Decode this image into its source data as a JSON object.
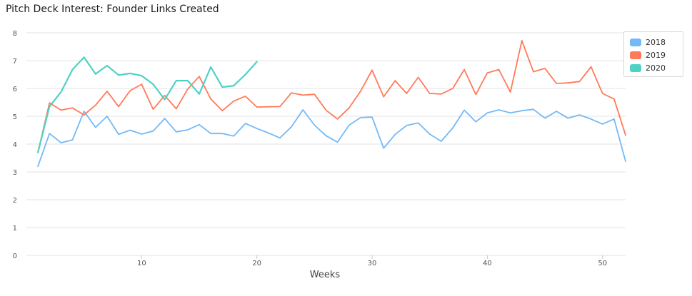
{
  "chart_data": {
    "type": "line",
    "title": "Pitch Deck Interest: Founder Links Created",
    "xlabel": "Weeks",
    "ylabel": "",
    "xlim": [
      0,
      52
    ],
    "ylim": [
      0,
      8
    ],
    "xticks": [
      10,
      20,
      30,
      40,
      50
    ],
    "yticks": [
      0,
      1,
      2,
      3,
      4,
      5,
      6,
      7,
      8
    ],
    "grid": true,
    "legend_position": "top-right",
    "series": [
      {
        "name": "2018",
        "color": "#74b9f7",
        "x": [
          1,
          2,
          3,
          4,
          5,
          6,
          7,
          8,
          9,
          10,
          11,
          12,
          13,
          14,
          15,
          16,
          17,
          18,
          19,
          20,
          21,
          22,
          23,
          24,
          25,
          26,
          27,
          28,
          29,
          30,
          31,
          32,
          33,
          34,
          35,
          36,
          37,
          38,
          39,
          40,
          41,
          42,
          43,
          44,
          45,
          46,
          47,
          48,
          49,
          50,
          51,
          52
        ],
        "values": [
          3.2,
          4.38,
          4.05,
          4.15,
          5.18,
          4.6,
          5.0,
          4.35,
          4.5,
          4.36,
          4.47,
          4.92,
          4.44,
          4.51,
          4.7,
          4.38,
          4.38,
          4.29,
          4.74,
          4.56,
          4.4,
          4.22,
          4.62,
          5.23,
          4.68,
          4.3,
          4.07,
          4.68,
          4.95,
          4.97,
          3.85,
          4.35,
          4.67,
          4.76,
          4.36,
          4.1,
          4.58,
          5.22,
          4.8,
          5.12,
          5.23,
          5.12,
          5.2,
          5.25,
          4.93,
          5.18,
          4.93,
          5.05,
          4.9,
          4.72,
          4.9,
          3.38
        ]
      },
      {
        "name": "2019",
        "color": "#ff7a59",
        "x": [
          1,
          2,
          3,
          4,
          5,
          6,
          7,
          8,
          9,
          10,
          11,
          12,
          13,
          14,
          15,
          16,
          17,
          18,
          19,
          20,
          21,
          22,
          23,
          24,
          25,
          26,
          27,
          28,
          29,
          30,
          31,
          32,
          33,
          34,
          35,
          36,
          37,
          38,
          39,
          40,
          41,
          42,
          43,
          44,
          45,
          46,
          47,
          48,
          49,
          50,
          51,
          52
        ],
        "values": [
          3.7,
          5.48,
          5.22,
          5.3,
          5.05,
          5.4,
          5.9,
          5.35,
          5.92,
          6.15,
          5.25,
          5.75,
          5.27,
          5.98,
          6.43,
          5.62,
          5.2,
          5.55,
          5.72,
          5.33,
          5.34,
          5.35,
          5.84,
          5.76,
          5.79,
          5.22,
          4.9,
          5.3,
          5.9,
          6.66,
          5.7,
          6.28,
          5.82,
          6.4,
          5.82,
          5.8,
          6.0,
          6.68,
          5.78,
          6.56,
          6.68,
          5.87,
          7.72,
          6.6,
          6.72,
          6.18,
          6.2,
          6.25,
          6.78,
          5.82,
          5.62,
          4.32
        ]
      },
      {
        "name": "2020",
        "color": "#4fd1c5",
        "x": [
          1,
          2,
          3,
          4,
          5,
          6,
          7,
          8,
          9,
          10,
          11,
          12,
          13,
          14,
          15,
          16,
          17,
          18,
          19,
          20
        ],
        "values": [
          3.7,
          5.35,
          5.87,
          6.68,
          7.12,
          6.52,
          6.82,
          6.48,
          6.54,
          6.46,
          6.15,
          5.6,
          6.28,
          6.28,
          5.8,
          6.77,
          6.05,
          6.1,
          6.5,
          6.96
        ]
      }
    ]
  }
}
